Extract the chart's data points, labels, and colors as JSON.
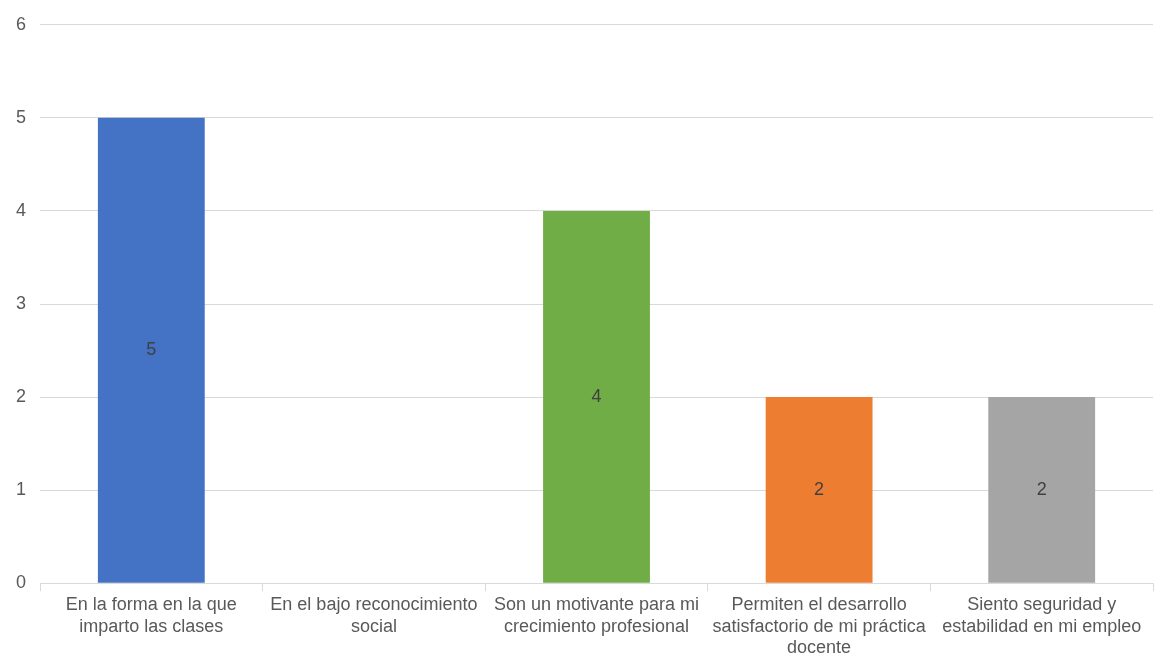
{
  "chart_data": {
    "type": "bar",
    "categories": [
      "En la forma en la que imparto las clases",
      "En el bajo reconocimiento social",
      "Son un motivante para mi crecimiento profesional",
      "Permiten el desarrollo satisfactorio de mi práctica docente",
      "Siento seguridad y estabilidad en mi empleo"
    ],
    "values": [
      5,
      null,
      4,
      2,
      2
    ],
    "colors": [
      "#4472c4",
      "#4472c4",
      "#70ad47",
      "#ed7d31",
      "#a5a5a5"
    ],
    "value_labels": [
      "5",
      null,
      "4",
      "2",
      "2"
    ],
    "ylim": [
      0,
      6
    ],
    "yticks": [
      0,
      1,
      2,
      3,
      4,
      5,
      6
    ],
    "grid": "y",
    "legend": false
  }
}
